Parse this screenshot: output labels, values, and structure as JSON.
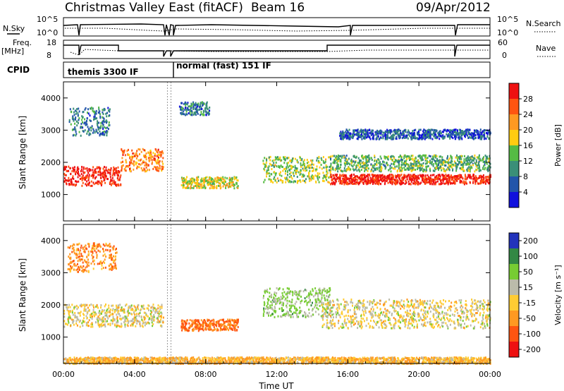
{
  "header": {
    "title": "Christmas Valley East (fitACF)",
    "beam": "Beam 16",
    "date": "09/Apr/2012"
  },
  "strips": {
    "nsky_label": "N.Sky",
    "nsearch_label": "N.Search",
    "noise_ticks_left": [
      "10^5",
      "10^0"
    ],
    "noise_ticks_right": [
      "10^5",
      "10^0"
    ],
    "freq_label": "Freq.",
    "freq_unit": "[MHz]",
    "freq_ticks": [
      "18",
      "8"
    ],
    "nave_label": "Nave",
    "nave_ticks": [
      "60",
      "0"
    ],
    "cpid_label": "CPID",
    "cpid_segments": [
      "themis 3300 IF",
      "normal (fast) 151 IF"
    ]
  },
  "panels": {
    "ylabel": "Slant Range [km]",
    "y_ticks": [
      "4000",
      "3000",
      "2000",
      "1000"
    ],
    "xlabel": "Time UT",
    "x_ticks": [
      "00:00",
      "04:00",
      "08:00",
      "12:00",
      "16:00",
      "20:00",
      "00:00"
    ]
  },
  "colorbars": {
    "power": {
      "label": "Power [dB]",
      "ticks": [
        "28",
        "24",
        "20",
        "16",
        "12",
        "8",
        "4"
      ],
      "colors": [
        "#ee1111",
        "#ff5511",
        "#ff9922",
        "#ffcc11",
        "#55bb44",
        "#3a8f78",
        "#2255aa",
        "#1111dd"
      ]
    },
    "velocity": {
      "label": "Velocity [m s⁻¹]",
      "ticks": [
        "200",
        "100",
        "50",
        "15",
        "-15",
        "-50",
        "-100",
        "-200"
      ],
      "colors": [
        "#2233bb",
        "#338844",
        "#77cc33",
        "#bbbbaa",
        "#ffcc33",
        "#ff9922",
        "#ff5511",
        "#ee1111"
      ]
    }
  },
  "chart_data": [
    {
      "type": "heatmap",
      "title": "Power [dB]",
      "xlabel": "Time UT",
      "ylabel": "Slant Range [km]",
      "xlim": [
        "00:00",
        "24:00"
      ],
      "ylim": [
        180,
        4500
      ],
      "zlim": [
        0,
        30
      ],
      "bands": [
        {
          "t_start": 0.0,
          "t_end": 3.2,
          "range_center": 1600,
          "range_width": 600,
          "power": 28
        },
        {
          "t_start": 3.2,
          "t_end": 5.6,
          "range_center": 2100,
          "range_width": 700,
          "power": 22
        },
        {
          "t_start": 0.3,
          "t_end": 2.6,
          "range_center": 3300,
          "range_width": 900,
          "power": 8
        },
        {
          "t_start": 6.6,
          "t_end": 9.8,
          "range_center": 1400,
          "range_width": 350,
          "power": 16
        },
        {
          "t_start": 6.5,
          "t_end": 8.2,
          "range_center": 3700,
          "range_width": 400,
          "power": 8
        },
        {
          "t_start": 11.2,
          "t_end": 15.0,
          "range_center": 1800,
          "range_width": 800,
          "power": 14
        },
        {
          "t_start": 15.0,
          "t_end": 24.0,
          "range_center": 1500,
          "range_width": 300,
          "power": 28
        },
        {
          "t_start": 15.0,
          "t_end": 24.0,
          "range_center": 2000,
          "range_width": 500,
          "power": 12
        },
        {
          "t_start": 15.5,
          "t_end": 24.0,
          "range_center": 2900,
          "range_width": 300,
          "power": 6
        }
      ]
    },
    {
      "type": "heatmap",
      "title": "Velocity [m s⁻¹]",
      "xlabel": "Time UT",
      "ylabel": "Slant Range [km]",
      "xlim": [
        "00:00",
        "24:00"
      ],
      "ylim": [
        180,
        4500
      ],
      "zlim": [
        -200,
        200
      ],
      "bands": [
        {
          "t_start": 0.0,
          "t_end": 5.6,
          "range_center": 1700,
          "range_width": 700,
          "velocity": 0
        },
        {
          "t_start": 0.2,
          "t_end": 3.0,
          "range_center": 3500,
          "range_width": 900,
          "velocity": -60
        },
        {
          "t_start": 6.6,
          "t_end": 9.8,
          "range_center": 1400,
          "range_width": 350,
          "velocity": -80
        },
        {
          "t_start": 11.2,
          "t_end": 15.0,
          "range_center": 2100,
          "range_width": 900,
          "velocity": 40
        },
        {
          "t_start": 14.5,
          "t_end": 24.0,
          "range_center": 1750,
          "range_width": 900,
          "velocity": 0
        },
        {
          "t_start": 0.0,
          "t_end": 24.0,
          "range_center": 300,
          "range_width": 200,
          "velocity": -30
        }
      ]
    }
  ]
}
